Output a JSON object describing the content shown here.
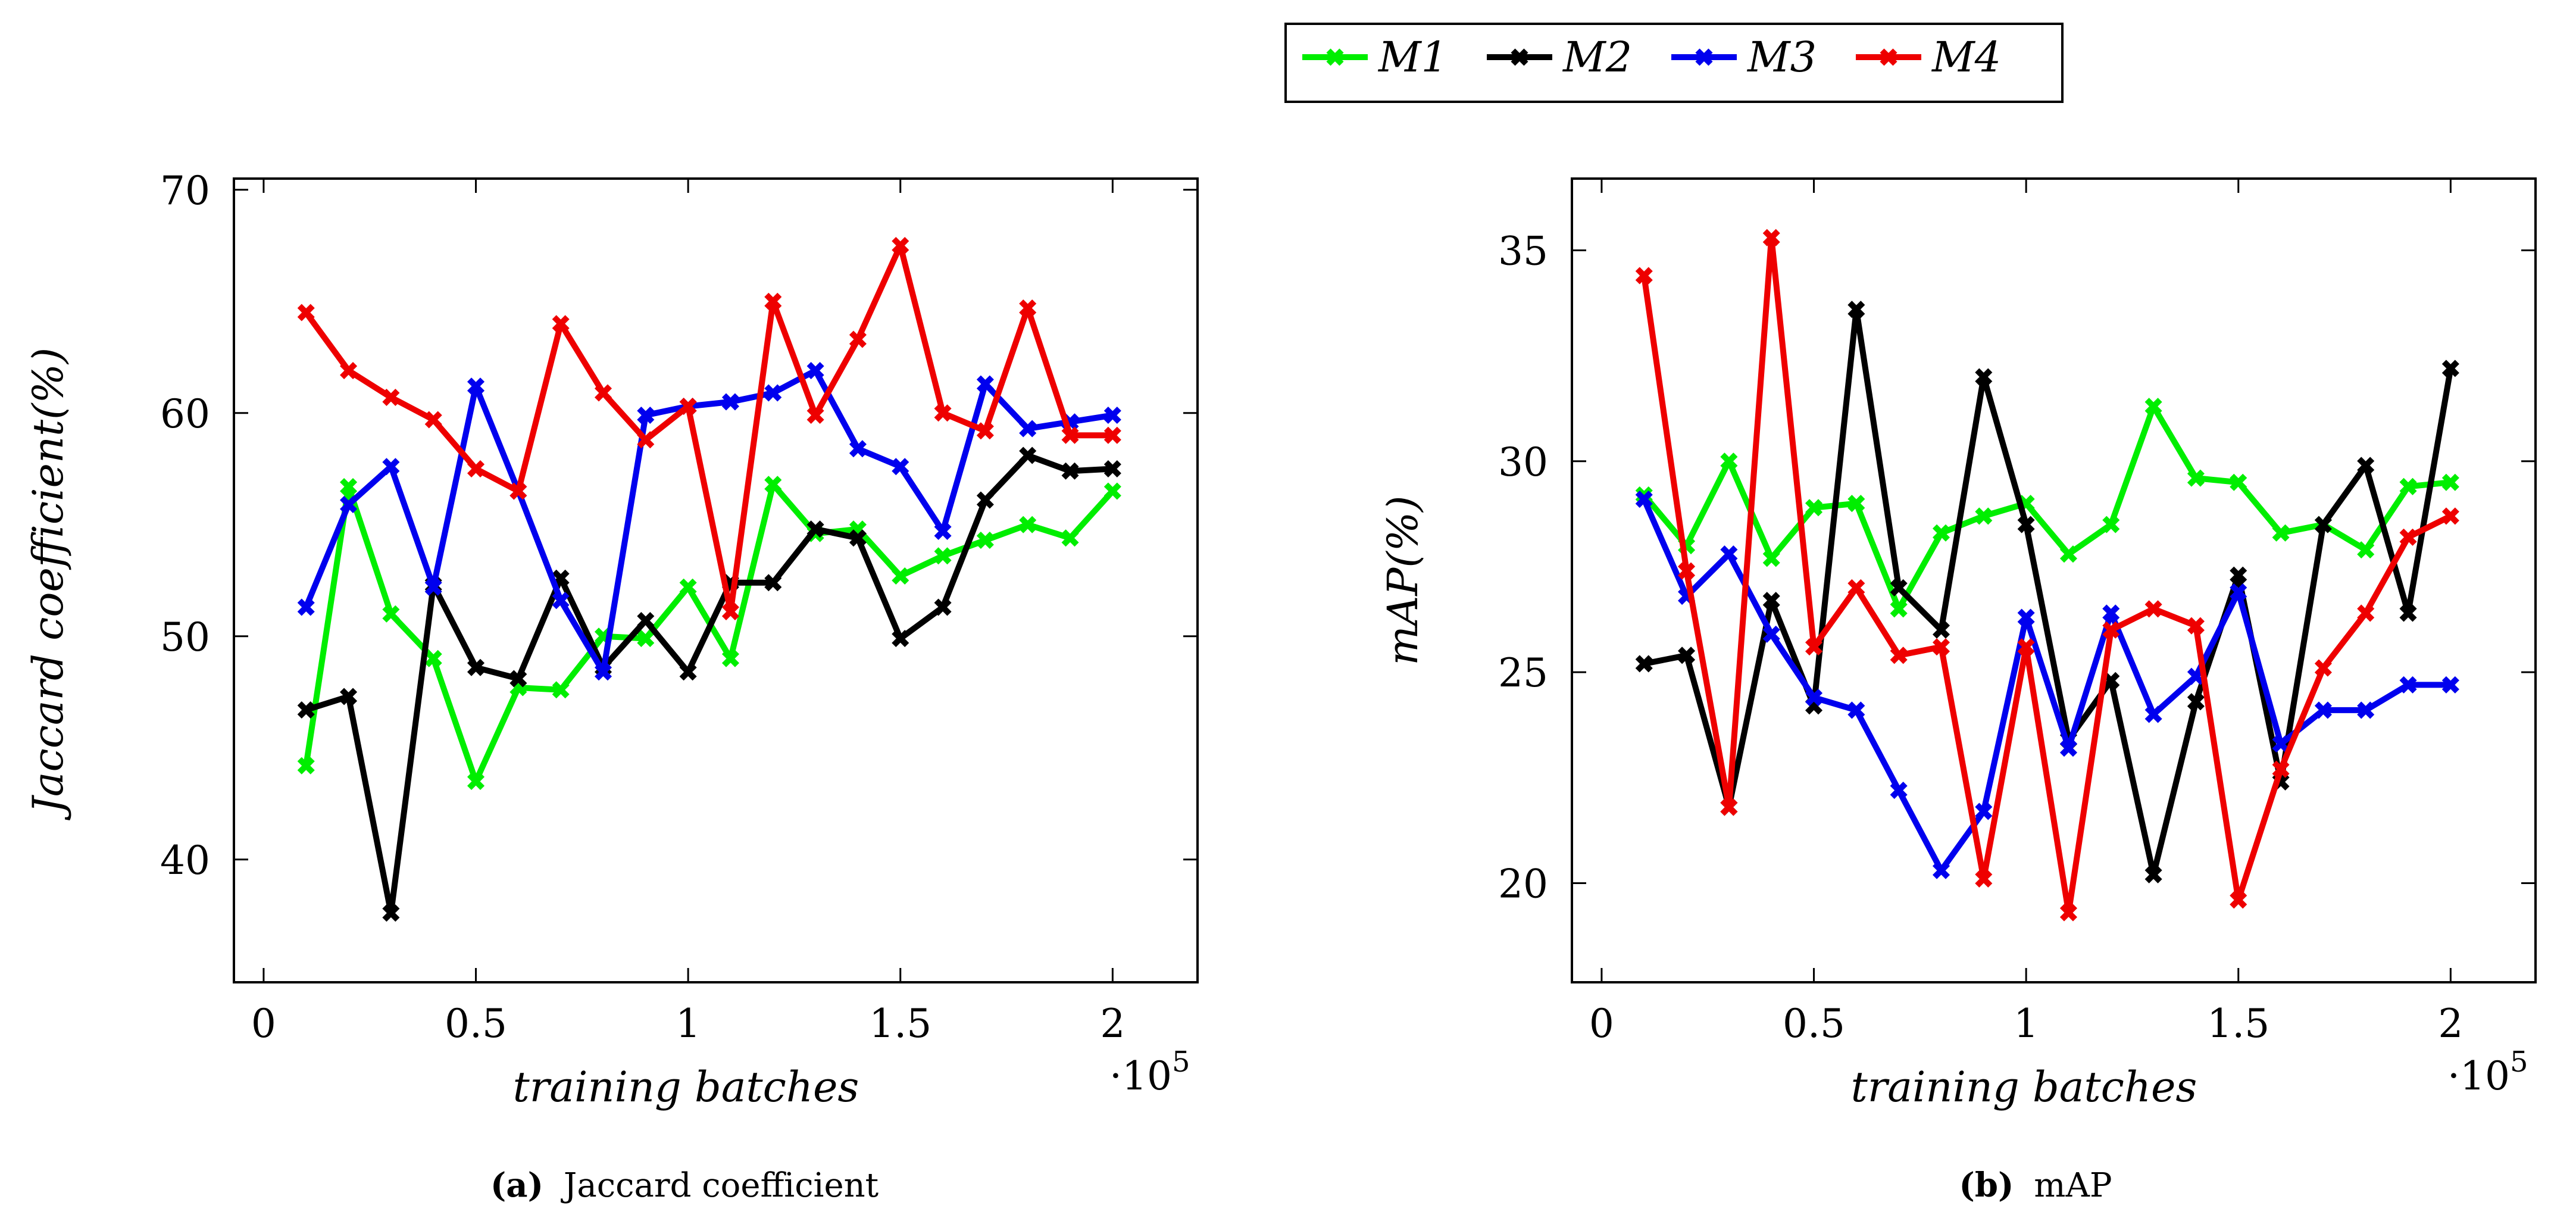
{
  "legend": {
    "entries": [
      {
        "label": "M1",
        "color": "#00ee00"
      },
      {
        "label": "M2",
        "color": "#000000"
      },
      {
        "label": "M3",
        "color": "#0000ee"
      },
      {
        "label": "M4",
        "color": "#ee0000"
      }
    ]
  },
  "chart_data": [
    {
      "type": "line",
      "panel": "a",
      "caption_tag": "(a)",
      "caption_text": "Jaccard coefficient",
      "title": "",
      "xlabel": "training batches",
      "ylabel": "Jaccard coefficient(%)",
      "x_scale_label": "·10",
      "x_scale_exp": "5",
      "xlim": [
        -0.07,
        2.2
      ],
      "ylim": [
        34.5,
        70.5
      ],
      "xticks": [
        0,
        0.5,
        1,
        1.5,
        2
      ],
      "xtick_labels": [
        "0",
        "0.5",
        "1",
        "1.5",
        "2"
      ],
      "yticks": [
        40,
        50,
        60,
        70
      ],
      "ytick_labels": [
        "40",
        "50",
        "60",
        "70"
      ],
      "x": [
        0.1,
        0.2,
        0.3,
        0.4,
        0.5,
        0.6,
        0.7,
        0.8,
        0.9,
        1.0,
        1.1,
        1.2,
        1.3,
        1.4,
        1.5,
        1.6,
        1.7,
        1.8,
        1.9,
        2.0
      ],
      "series": [
        {
          "name": "M1",
          "color": "#00ee00",
          "values": [
            44.2,
            56.7,
            51.0,
            49.0,
            43.5,
            47.7,
            47.6,
            50.0,
            49.9,
            52.2,
            49.0,
            56.8,
            54.6,
            54.8,
            52.7,
            53.6,
            54.3,
            55.0,
            54.4,
            56.5
          ]
        },
        {
          "name": "M2",
          "color": "#000000",
          "values": [
            46.7,
            47.3,
            37.6,
            52.3,
            48.6,
            48.1,
            52.6,
            48.6,
            50.7,
            48.4,
            52.4,
            52.4,
            54.8,
            54.4,
            49.9,
            51.3,
            56.1,
            58.1,
            57.4,
            57.5
          ]
        },
        {
          "name": "M3",
          "color": "#0000ee",
          "values": [
            51.3,
            55.9,
            57.6,
            52.2,
            61.2,
            56.5,
            51.6,
            48.4,
            59.9,
            60.3,
            60.5,
            60.9,
            61.9,
            58.4,
            57.6,
            54.7,
            61.3,
            59.3,
            59.6,
            59.9
          ]
        },
        {
          "name": "M4",
          "color": "#ee0000",
          "values": [
            64.5,
            61.9,
            60.7,
            59.7,
            57.5,
            56.5,
            64.0,
            60.9,
            58.8,
            60.3,
            51.1,
            65.0,
            59.9,
            63.3,
            67.5,
            60.0,
            59.2,
            64.7,
            59.0,
            59.0
          ]
        }
      ]
    },
    {
      "type": "line",
      "panel": "b",
      "caption_tag": "(b)",
      "caption_text": "mAP",
      "title": "",
      "xlabel": "training batches",
      "ylabel": "mAP(%)",
      "x_scale_label": "·10",
      "x_scale_exp": "5",
      "xlim": [
        -0.07,
        2.2
      ],
      "ylim": [
        17.65,
        36.7
      ],
      "xticks": [
        0,
        0.5,
        1,
        1.5,
        2
      ],
      "xtick_labels": [
        "0",
        "0.5",
        "1",
        "1.5",
        "2"
      ],
      "yticks": [
        20,
        25,
        30,
        35
      ],
      "ytick_labels": [
        "20",
        "25",
        "30",
        "35"
      ],
      "x": [
        0.1,
        0.2,
        0.3,
        0.4,
        0.5,
        0.6,
        0.7,
        0.8,
        0.9,
        1.0,
        1.1,
        1.2,
        1.3,
        1.4,
        1.5,
        1.6,
        1.7,
        1.8,
        1.9,
        2.0
      ],
      "series": [
        {
          "name": "M1",
          "color": "#00ee00",
          "values": [
            29.2,
            28.0,
            30.0,
            27.7,
            28.9,
            29.0,
            26.5,
            28.3,
            28.7,
            29.0,
            27.8,
            28.5,
            31.3,
            29.6,
            29.5,
            28.3,
            28.5,
            27.9,
            29.4,
            29.5
          ]
        },
        {
          "name": "M2",
          "color": "#000000",
          "values": [
            25.2,
            25.4,
            21.8,
            26.7,
            24.2,
            33.6,
            27.0,
            26.0,
            32.0,
            28.5,
            23.4,
            24.8,
            20.2,
            24.3,
            27.3,
            22.4,
            28.5,
            29.9,
            26.4,
            32.2
          ]
        },
        {
          "name": "M3",
          "color": "#0000ee",
          "values": [
            29.1,
            26.8,
            27.8,
            25.9,
            24.4,
            24.1,
            22.2,
            20.3,
            21.7,
            26.3,
            23.2,
            26.4,
            24.0,
            24.9,
            26.9,
            23.3,
            24.1,
            24.1,
            24.7,
            24.7
          ]
        },
        {
          "name": "M4",
          "color": "#ee0000",
          "values": [
            34.4,
            27.4,
            21.8,
            35.3,
            25.6,
            27.0,
            25.4,
            25.6,
            20.1,
            25.6,
            19.3,
            26.0,
            26.5,
            26.1,
            19.6,
            22.7,
            25.1,
            26.4,
            28.2,
            28.7
          ]
        }
      ]
    }
  ]
}
